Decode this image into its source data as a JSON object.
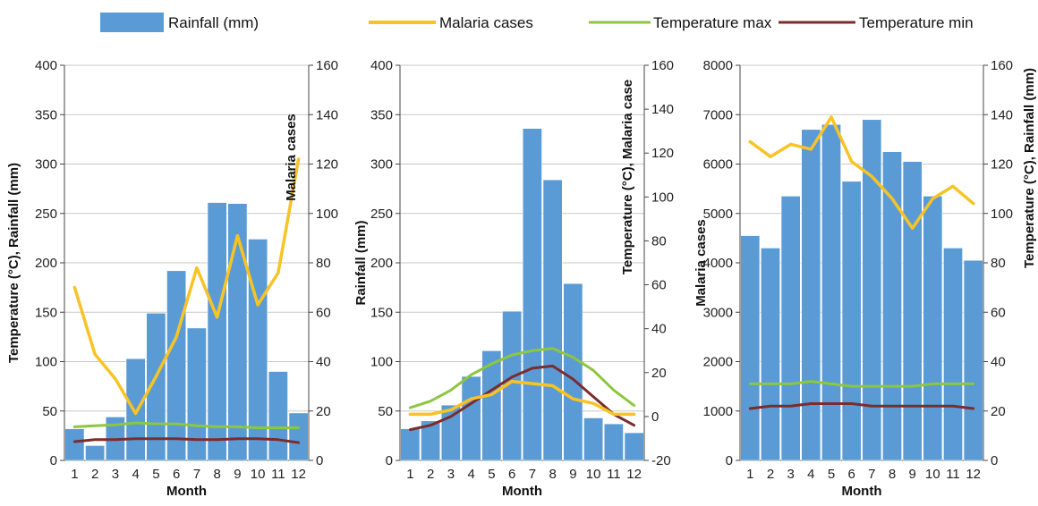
{
  "legend": [
    {
      "key": "rainfall",
      "label": "Rainfall (mm)",
      "kind": "bar",
      "color": "#5b9bd5"
    },
    {
      "key": "malaria",
      "label": "Malaria cases",
      "kind": "line",
      "color": "#f7c325"
    },
    {
      "key": "tmax",
      "label": "Temperature max",
      "kind": "line",
      "color": "#8dc63f"
    },
    {
      "key": "tmin",
      "label": "Temperature  min",
      "kind": "line",
      "color": "#7b2c2f"
    }
  ],
  "chart_data": [
    {
      "type": "bar",
      "categories": [
        "1",
        "2",
        "3",
        "4",
        "5",
        "6",
        "7",
        "8",
        "9",
        "10",
        "11",
        "12"
      ],
      "xlabel": "Month",
      "left_axis_title": "Temperature (°C), Rainfall (mm)",
      "left_ylim": [
        0,
        400
      ],
      "left_ticks": [
        "0",
        "50",
        "100",
        "150",
        "200",
        "250",
        "300",
        "350",
        "400"
      ],
      "right_axis_title": "Malaria cases",
      "right_ylim": [
        0,
        160
      ],
      "right_ticks": [
        "0",
        "20",
        "40",
        "60",
        "80",
        "100",
        "120",
        "140",
        "160"
      ],
      "grid": true,
      "series": [
        {
          "name": "Rainfall (mm)",
          "kind": "bar",
          "axis": "left",
          "values": [
            32,
            15,
            44,
            103,
            149,
            192,
            134,
            261,
            260,
            224,
            90,
            48
          ]
        },
        {
          "name": "Malaria cases",
          "kind": "line",
          "axis": "right",
          "values": [
            70,
            43,
            33,
            19,
            34,
            50,
            78,
            58,
            91,
            63,
            76,
            122
          ]
        },
        {
          "name": "Temperature max",
          "kind": "line",
          "axis": "left",
          "values": [
            34,
            35,
            36,
            38,
            37,
            37,
            35,
            34,
            34,
            33,
            33,
            33
          ]
        },
        {
          "name": "Temperature  min",
          "kind": "line",
          "axis": "left",
          "values": [
            19,
            21,
            21,
            22,
            22,
            22,
            21,
            21,
            22,
            22,
            21,
            18
          ]
        }
      ]
    },
    {
      "type": "bar",
      "categories": [
        "1",
        "2",
        "3",
        "4",
        "5",
        "6",
        "7",
        "8",
        "9",
        "10",
        "11",
        "12"
      ],
      "xlabel": "Month",
      "left_axis_title": "Rainfall (mm)",
      "left_ylim": [
        0,
        400
      ],
      "left_ticks": [
        "0",
        "50",
        "100",
        "150",
        "200",
        "250",
        "300",
        "350",
        "400"
      ],
      "right_axis_title": "Temperature (°C), Malaria case",
      "right_ylim": [
        -20,
        160
      ],
      "right_ticks": [
        "-20",
        "0",
        "20",
        "40",
        "60",
        "80",
        "100",
        "120",
        "140",
        "160"
      ],
      "grid": true,
      "series": [
        {
          "name": "Rainfall (mm)",
          "kind": "bar",
          "axis": "left",
          "values": [
            32,
            40,
            56,
            85,
            111,
            151,
            336,
            284,
            179,
            43,
            37,
            28
          ]
        },
        {
          "name": "Malaria cases",
          "kind": "line",
          "axis": "right",
          "values": [
            1,
            1,
            3,
            8,
            10,
            16,
            15,
            14,
            8,
            6,
            1,
            1
          ]
        },
        {
          "name": "Temperature max",
          "kind": "line",
          "axis": "right",
          "values": [
            4,
            7,
            12,
            19,
            24,
            28,
            30,
            31,
            27,
            21,
            12,
            5
          ]
        },
        {
          "name": "Temperature  min",
          "kind": "line",
          "axis": "right",
          "values": [
            -6,
            -4,
            0,
            6,
            12,
            18,
            22,
            23,
            17,
            9,
            1,
            -4
          ]
        }
      ]
    },
    {
      "type": "bar",
      "categories": [
        "1",
        "2",
        "3",
        "4",
        "5",
        "6",
        "7",
        "8",
        "9",
        "10",
        "11",
        "12"
      ],
      "xlabel": "Month",
      "left_axis_title": "Malaria cases",
      "left_ylim": [
        0,
        8000
      ],
      "left_ticks": [
        "0",
        "1000",
        "2000",
        "3000",
        "4000",
        "5000",
        "6000",
        "7000",
        "8000"
      ],
      "right_axis_title": "Temperature (°C), Rainfall (mm)",
      "right_ylim": [
        0,
        160
      ],
      "right_ticks": [
        "0",
        "20",
        "40",
        "60",
        "80",
        "100",
        "120",
        "140",
        "160"
      ],
      "grid": true,
      "series": [
        {
          "name": "Rainfall (mm)",
          "kind": "bar",
          "axis": "right",
          "values": [
            91,
            86,
            107,
            134,
            136,
            113,
            138,
            125,
            121,
            107,
            86,
            81
          ]
        },
        {
          "name": "Malaria cases",
          "kind": "line",
          "axis": "left",
          "values": [
            6450,
            6150,
            6400,
            6300,
            6950,
            6050,
            5750,
            5300,
            4700,
            5300,
            5550,
            5200
          ]
        },
        {
          "name": "Temperature max",
          "kind": "line",
          "axis": "right",
          "values": [
            31,
            31,
            31,
            32,
            31,
            30,
            30,
            30,
            30,
            31,
            31,
            31
          ]
        },
        {
          "name": "Temperature  min",
          "kind": "line",
          "axis": "right",
          "values": [
            21,
            22,
            22,
            23,
            23,
            23,
            22,
            22,
            22,
            22,
            22,
            21
          ]
        }
      ]
    }
  ]
}
